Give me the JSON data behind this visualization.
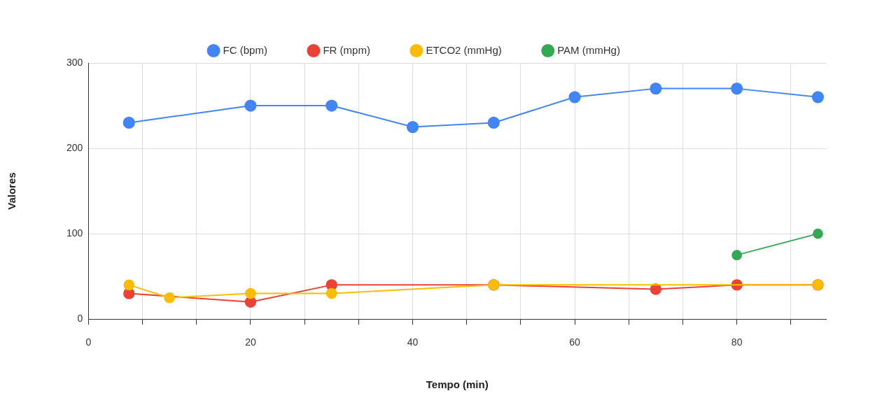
{
  "chart_data": {
    "type": "line",
    "xlabel": "Tempo (min)",
    "ylabel": "Valores",
    "xlim": [
      0,
      91
    ],
    "xticks": [
      0,
      {
        "value": 6.67,
        "label": null
      },
      {
        "value": 13.33,
        "label": null
      },
      20,
      {
        "value": 26.67,
        "label": null
      },
      {
        "value": 33.33,
        "label": null
      },
      40,
      {
        "value": 46.67,
        "label": null
      },
      {
        "value": 53.33,
        "label": null
      },
      60,
      {
        "value": 66.67,
        "label": null
      },
      {
        "value": 73.33,
        "label": null
      },
      80,
      {
        "value": 86.67,
        "label": null
      }
    ],
    "ylim": [
      0,
      300
    ],
    "yticks": [
      0,
      100,
      200,
      300
    ],
    "grid": true,
    "legend": "top",
    "marker": "circle",
    "line_style": "solid",
    "series": [
      {
        "name": "FC (bpm)",
        "color": "#4285f4",
        "x": [
          5,
          20,
          30,
          40,
          50,
          60,
          70,
          80,
          90
        ],
        "values": [
          230,
          250,
          250,
          225,
          230,
          260,
          270,
          270,
          260
        ]
      },
      {
        "name": "FR (mpm)",
        "color": "#ea4335",
        "x": [
          5,
          20,
          30,
          50,
          70,
          80,
          90
        ],
        "values": [
          30,
          20,
          40,
          40,
          35,
          40,
          40
        ]
      },
      {
        "name": "ETCO2 (mmHg)",
        "color": "#fbbc04",
        "x": [
          5,
          10,
          20,
          30,
          50,
          90
        ],
        "values": [
          40,
          25,
          30,
          30,
          40,
          40
        ]
      },
      {
        "name": "PAM (mmHg)",
        "color": "#34a853",
        "x": [
          80,
          90
        ],
        "values": [
          75,
          100
        ]
      }
    ]
  }
}
